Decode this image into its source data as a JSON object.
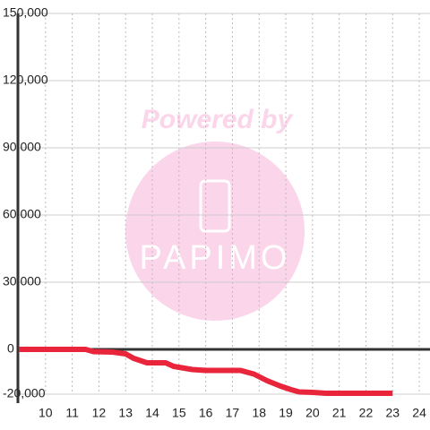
{
  "chart_data": {
    "type": "line",
    "x": [
      9,
      11.5,
      11.8,
      12.5,
      13,
      13.3,
      13.8,
      14.5,
      14.8,
      15.5,
      16,
      17.3,
      17.8,
      18.3,
      18.8,
      19.2,
      19.5,
      20,
      20.5,
      23
    ],
    "series": [
      {
        "color": "#e8253a",
        "values": [
          0,
          0,
          -1000,
          -1200,
          -2000,
          -4000,
          -6000,
          -6000,
          -7600,
          -9000,
          -9400,
          -9400,
          -11000,
          -14000,
          -16400,
          -18000,
          -19000,
          -19200,
          -19600,
          -19600
        ]
      }
    ],
    "xlim": [
      9,
      24.4
    ],
    "xticks": [
      10,
      11,
      12,
      13,
      14,
      15,
      16,
      17,
      18,
      19,
      20,
      21,
      22,
      23,
      24
    ],
    "ylim": [
      -20000,
      150000
    ],
    "yticks": [
      {
        "value": -20000,
        "label": "-20,000"
      },
      0,
      {
        "value": 30000,
        "label": "30,000"
      },
      {
        "value": 60000,
        "label": "60,000"
      },
      {
        "value": 90000,
        "label": "90,000"
      },
      {
        "value": 120000,
        "label": "120,000"
      },
      {
        "value": 150000,
        "label": "150,000"
      }
    ],
    "grid": true
  },
  "watermark": {
    "line1": "Powered by",
    "line2": "PAPIMO"
  }
}
